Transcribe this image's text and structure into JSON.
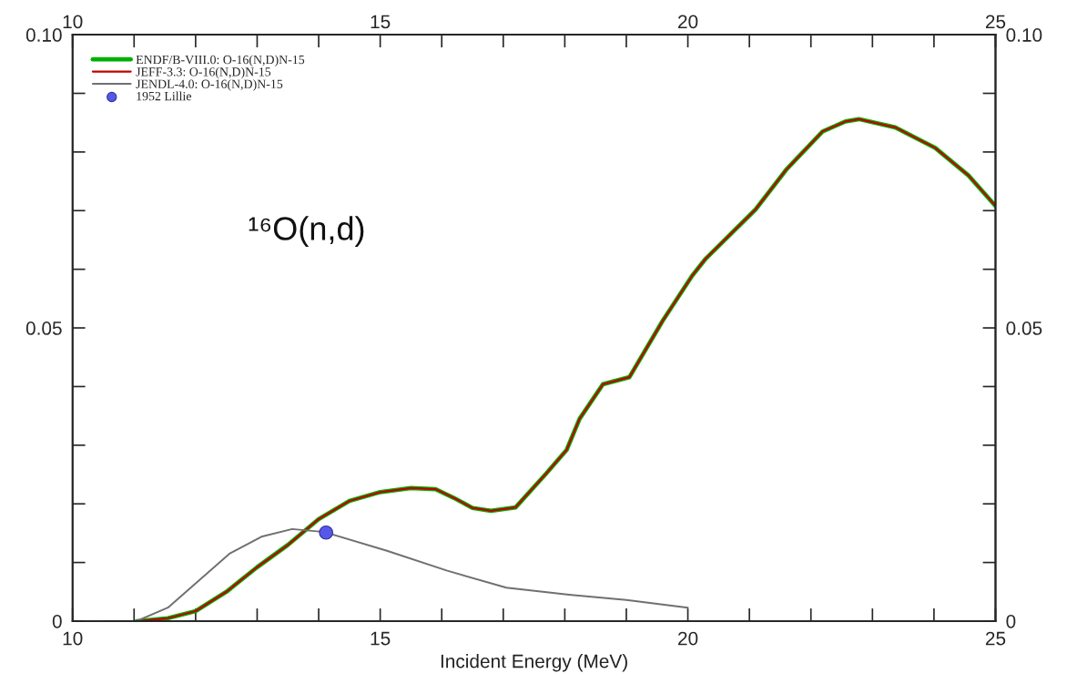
{
  "chart_data": {
    "type": "line",
    "xlabel": "Incident Energy (MeV)",
    "annotations": [
      "¹⁶O(n,d)"
    ],
    "series": [
      {
        "name": "ENDF/B-VIII.0: O-16(N,D)N-15",
        "color": "#00b000",
        "x": [
          11.04,
          11.55,
          12.0,
          12.5,
          13.0,
          13.5,
          14.0,
          14.5,
          15.0,
          15.5,
          15.9,
          16.2,
          16.5,
          16.8,
          17.2,
          17.7,
          18.03,
          18.24,
          18.62,
          19.05,
          19.59,
          20.07,
          20.29,
          21.1,
          21.6,
          22.19,
          22.56,
          22.78,
          23.37,
          24.02,
          24.56,
          25.0
        ],
        "values": [
          0,
          0.0005,
          0.0017,
          0.005,
          0.0092,
          0.013,
          0.0174,
          0.0205,
          0.022,
          0.0227,
          0.0225,
          0.021,
          0.0193,
          0.0188,
          0.0194,
          0.0252,
          0.0292,
          0.0345,
          0.0404,
          0.0416,
          0.0512,
          0.0589,
          0.0618,
          0.0702,
          0.077,
          0.0835,
          0.0852,
          0.0856,
          0.0842,
          0.0807,
          0.076,
          0.0708
        ]
      },
      {
        "name": "JEFF-3.3: O-16(N,D)N-15",
        "color": "#c00000",
        "x": [
          11.04,
          11.55,
          12.0,
          12.5,
          13.0,
          13.5,
          14.0,
          14.5,
          15.0,
          15.5,
          15.9,
          16.2,
          16.5,
          16.8,
          17.2,
          17.7,
          18.03,
          18.24,
          18.62,
          19.05,
          19.59,
          20.07,
          20.29,
          21.1,
          21.6,
          22.19,
          22.56,
          22.78,
          23.37,
          24.02,
          24.56,
          25.0
        ],
        "values": [
          0,
          0.0005,
          0.0017,
          0.005,
          0.0092,
          0.013,
          0.0174,
          0.0205,
          0.022,
          0.0227,
          0.0225,
          0.021,
          0.0193,
          0.0188,
          0.0194,
          0.0252,
          0.0292,
          0.0345,
          0.0404,
          0.0416,
          0.0512,
          0.0589,
          0.0618,
          0.0702,
          0.077,
          0.0835,
          0.0852,
          0.0856,
          0.0842,
          0.0807,
          0.076,
          0.0708
        ]
      },
      {
        "name": "JENDL-4.0: O-16(N,D)N-15",
        "color": "#707070",
        "x": [
          10.5,
          11.04,
          11.55,
          12.55,
          13.07,
          13.57,
          14.09,
          15.11,
          16.09,
          17.05,
          18.07,
          19.0,
          20.0
        ],
        "values": [
          0,
          0,
          0.0023,
          0.0115,
          0.0144,
          0.0157,
          0.0152,
          0.012,
          0.0086,
          0.0057,
          0.0045,
          0.0036,
          0.0023
        ]
      },
      {
        "name": "1952 Lillie",
        "type": "scatter",
        "marker": "circle",
        "color": "#5858e8",
        "x": [
          14.12
        ],
        "values": [
          0.0151
        ]
      }
    ],
    "xlim": [
      10,
      25
    ],
    "xticks": [
      10,
      {
        "value": 11,
        "label": null
      },
      {
        "value": 12,
        "label": null
      },
      {
        "value": 13,
        "label": null
      },
      {
        "value": 14,
        "label": null
      },
      15,
      {
        "value": 16,
        "label": null
      },
      {
        "value": 17,
        "label": null
      },
      {
        "value": 18,
        "label": null
      },
      {
        "value": 19,
        "label": null
      },
      20,
      {
        "value": 21,
        "label": null
      },
      {
        "value": 22,
        "label": null
      },
      {
        "value": 23,
        "label": null
      },
      {
        "value": 24,
        "label": null
      },
      25
    ],
    "x2lim": [
      10,
      25
    ],
    "x2ticks": [
      10,
      {
        "value": 11,
        "label": null
      },
      {
        "value": 12,
        "label": null
      },
      {
        "value": 13,
        "label": null
      },
      {
        "value": 14,
        "label": null
      },
      15,
      {
        "value": 16,
        "label": null
      },
      {
        "value": 17,
        "label": null
      },
      {
        "value": 18,
        "label": null
      },
      {
        "value": 19,
        "label": null
      },
      20,
      {
        "value": 21,
        "label": null
      },
      {
        "value": 22,
        "label": null
      },
      {
        "value": 23,
        "label": null
      },
      {
        "value": 24,
        "label": null
      },
      25
    ],
    "ylim": [
      0,
      0.1
    ],
    "yticks": [
      0,
      {
        "value": 0.01,
        "label": null
      },
      {
        "value": 0.02,
        "label": null
      },
      {
        "value": 0.03,
        "label": null
      },
      {
        "value": 0.04,
        "label": null
      },
      0.05,
      {
        "value": 0.06,
        "label": null
      },
      {
        "value": 0.07,
        "label": null
      },
      {
        "value": 0.08,
        "label": null
      },
      {
        "value": 0.09,
        "label": null
      },
      {
        "value": 0.1,
        "label": "0.10"
      }
    ],
    "y2lim": [
      0,
      0.1
    ],
    "y2ticks": [
      0,
      {
        "value": 0.01,
        "label": null
      },
      {
        "value": 0.02,
        "label": null
      },
      {
        "value": 0.03,
        "label": null
      },
      {
        "value": 0.04,
        "label": null
      },
      0.05,
      {
        "value": 0.06,
        "label": null
      },
      {
        "value": 0.07,
        "label": null
      },
      {
        "value": 0.08,
        "label": null
      },
      {
        "value": 0.09,
        "label": null
      },
      {
        "value": 0.1,
        "label": "0.10"
      }
    ],
    "grid": false,
    "legend": "top left",
    "line_style": "solid"
  }
}
